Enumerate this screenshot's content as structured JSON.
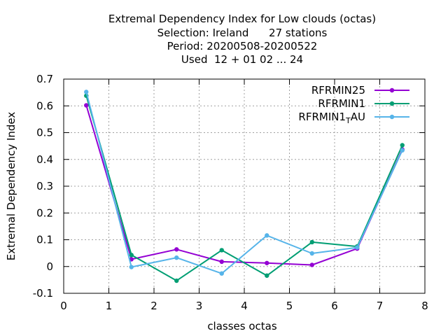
{
  "chart_data": {
    "type": "line",
    "title_lines": [
      "Extremal Dependency Index  for Low clouds (octas)",
      "Selection: Ireland      27 stations",
      "Period: 20200508-20200522",
      "Used  12 + 01 02 ... 24"
    ],
    "xlabel": "classes octas",
    "ylabel": "Extremal Dependency Index",
    "xlim": [
      0,
      8
    ],
    "ylim": [
      -0.1,
      0.7
    ],
    "xticks": [
      0,
      1,
      2,
      3,
      4,
      5,
      6,
      7,
      8
    ],
    "xtick_labels": [
      "0",
      "1",
      "2",
      "3",
      "4",
      "5",
      "6",
      "7",
      "8"
    ],
    "yticks": [
      -0.1,
      0,
      0.1,
      0.2,
      0.3,
      0.4,
      0.5,
      0.6,
      0.7
    ],
    "ytick_labels": [
      "-0.1",
      "0",
      "0.1",
      "0.2",
      "0.3",
      "0.4",
      "0.5",
      "0.6",
      "0.7"
    ],
    "grid": true,
    "legend_position": "top-right",
    "x": [
      0.5,
      1.5,
      2.5,
      3.5,
      4.5,
      5.5,
      6.5,
      7.5
    ],
    "series": [
      {
        "name": "RFRMIN25",
        "color": "#9400d3",
        "values": [
          0.602,
          0.027,
          0.064,
          0.018,
          0.013,
          0.006,
          0.067,
          0.437
        ]
      },
      {
        "name": "RFRMIN1",
        "color": "#009e73",
        "values": [
          0.638,
          0.043,
          -0.053,
          0.061,
          -0.034,
          0.091,
          0.075,
          0.453
        ]
      },
      {
        "name": "RFRMIN1_TAU",
        "legend_parts": [
          "RFRMIN1",
          "T",
          "AU"
        ],
        "color": "#56b4e9",
        "values": [
          0.652,
          -0.002,
          0.033,
          -0.026,
          0.116,
          0.049,
          0.071,
          0.434
        ]
      }
    ]
  }
}
